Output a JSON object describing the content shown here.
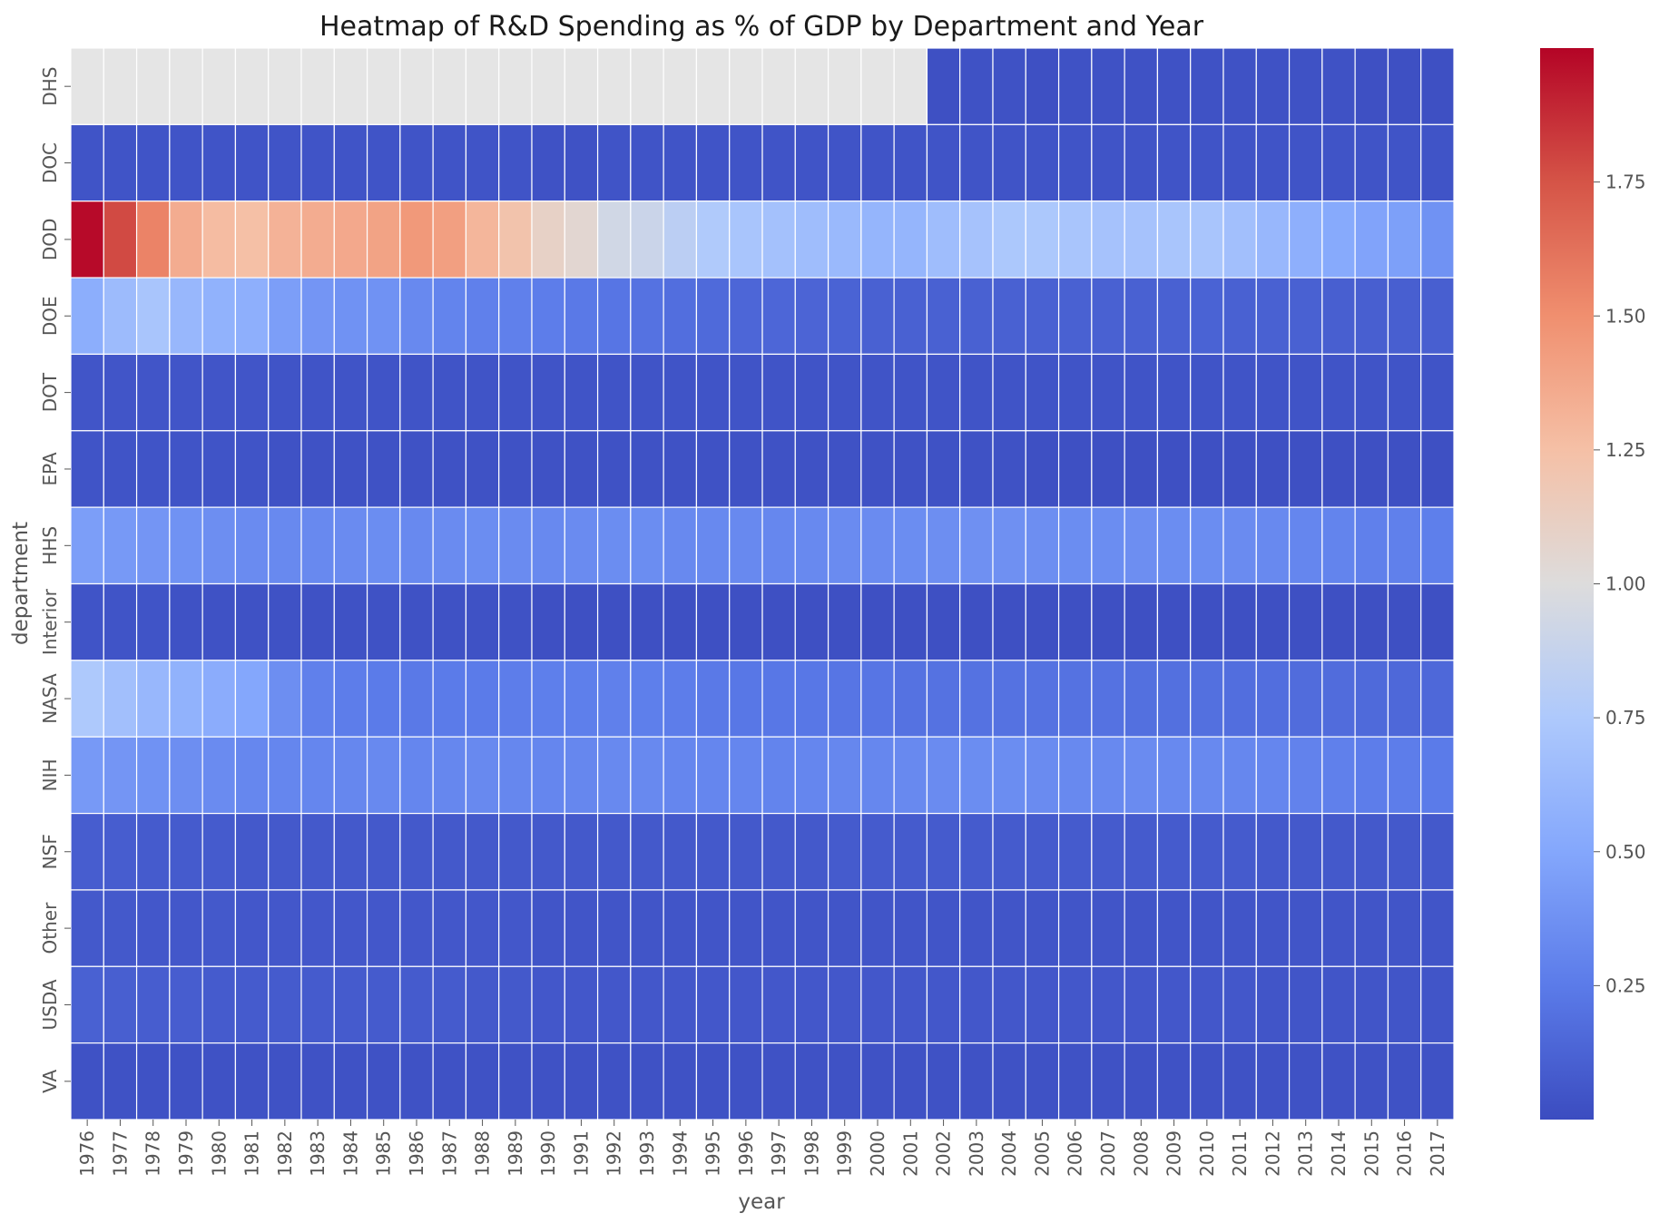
{
  "chart_data": {
    "type": "heatmap",
    "title": "Heatmap of R&D Spending as % of GDP by Department and Year",
    "xlabel": "year",
    "ylabel": "department",
    "colormap": "coolwarm",
    "missing_color": "#e5e5e5",
    "grid_line_color": "#ffffff",
    "vmin": 0.0,
    "vmax": 2.0,
    "colorbar_ticks": [
      "0.25",
      "0.50",
      "0.75",
      "1.00",
      "1.25",
      "1.50",
      "1.75"
    ],
    "x": [
      "1976",
      "1977",
      "1978",
      "1979",
      "1980",
      "1981",
      "1982",
      "1983",
      "1984",
      "1985",
      "1986",
      "1987",
      "1988",
      "1989",
      "1990",
      "1991",
      "1992",
      "1993",
      "1994",
      "1995",
      "1996",
      "1997",
      "1998",
      "1999",
      "2000",
      "2001",
      "2002",
      "2003",
      "2004",
      "2005",
      "2006",
      "2007",
      "2008",
      "2009",
      "2010",
      "2011",
      "2012",
      "2013",
      "2014",
      "2015",
      "2016",
      "2017"
    ],
    "y": [
      "DHS",
      "DOC",
      "DOD",
      "DOE",
      "DOT",
      "EPA",
      "HHS",
      "Interior",
      "NASA",
      "NIH",
      "NSF",
      "Other",
      "USDA",
      "VA"
    ],
    "values": [
      [
        null,
        null,
        null,
        null,
        null,
        null,
        null,
        null,
        null,
        null,
        null,
        null,
        null,
        null,
        null,
        null,
        null,
        null,
        null,
        null,
        null,
        null,
        null,
        null,
        null,
        null,
        0.02,
        0.03,
        0.03,
        0.02,
        0.03,
        0.03,
        0.03,
        0.03,
        0.03,
        0.03,
        0.03,
        0.03,
        0.03,
        0.02,
        0.02,
        0.02
      ],
      [
        0.04,
        0.04,
        0.04,
        0.04,
        0.04,
        0.04,
        0.04,
        0.04,
        0.04,
        0.04,
        0.04,
        0.04,
        0.04,
        0.04,
        0.03,
        0.03,
        0.04,
        0.04,
        0.04,
        0.04,
        0.04,
        0.04,
        0.04,
        0.04,
        0.04,
        0.04,
        0.04,
        0.04,
        0.04,
        0.04,
        0.04,
        0.04,
        0.04,
        0.04,
        0.04,
        0.04,
        0.04,
        0.04,
        0.04,
        0.04,
        0.04,
        0.04
      ],
      [
        1.98,
        1.78,
        1.55,
        1.35,
        1.27,
        1.25,
        1.32,
        1.35,
        1.37,
        1.4,
        1.45,
        1.42,
        1.3,
        1.22,
        1.1,
        1.05,
        0.93,
        0.9,
        0.82,
        0.76,
        0.72,
        0.69,
        0.66,
        0.63,
        0.6,
        0.6,
        0.66,
        0.7,
        0.74,
        0.74,
        0.72,
        0.7,
        0.7,
        0.72,
        0.72,
        0.68,
        0.62,
        0.56,
        0.52,
        0.48,
        0.46,
        0.38
      ],
      [
        0.55,
        0.65,
        0.72,
        0.62,
        0.58,
        0.56,
        0.45,
        0.4,
        0.38,
        0.38,
        0.33,
        0.3,
        0.28,
        0.28,
        0.26,
        0.24,
        0.22,
        0.2,
        0.18,
        0.16,
        0.14,
        0.14,
        0.13,
        0.12,
        0.11,
        0.11,
        0.11,
        0.11,
        0.11,
        0.11,
        0.11,
        0.11,
        0.11,
        0.11,
        0.12,
        0.11,
        0.11,
        0.11,
        0.1,
        0.1,
        0.1,
        0.1
      ],
      [
        0.05,
        0.05,
        0.05,
        0.05,
        0.05,
        0.05,
        0.04,
        0.04,
        0.04,
        0.04,
        0.04,
        0.04,
        0.04,
        0.04,
        0.04,
        0.04,
        0.04,
        0.04,
        0.04,
        0.04,
        0.04,
        0.04,
        0.04,
        0.04,
        0.04,
        0.04,
        0.04,
        0.04,
        0.04,
        0.04,
        0.04,
        0.04,
        0.04,
        0.04,
        0.04,
        0.04,
        0.04,
        0.04,
        0.04,
        0.04,
        0.04,
        0.04
      ],
      [
        0.04,
        0.04,
        0.04,
        0.04,
        0.04,
        0.04,
        0.03,
        0.03,
        0.03,
        0.03,
        0.03,
        0.03,
        0.03,
        0.03,
        0.03,
        0.03,
        0.03,
        0.03,
        0.03,
        0.03,
        0.03,
        0.03,
        0.03,
        0.03,
        0.03,
        0.03,
        0.03,
        0.03,
        0.03,
        0.02,
        0.02,
        0.02,
        0.02,
        0.02,
        0.02,
        0.02,
        0.02,
        0.02,
        0.02,
        0.02,
        0.02,
        0.02
      ],
      [
        0.45,
        0.42,
        0.4,
        0.38,
        0.36,
        0.34,
        0.33,
        0.33,
        0.34,
        0.35,
        0.33,
        0.34,
        0.35,
        0.34,
        0.33,
        0.34,
        0.35,
        0.35,
        0.33,
        0.33,
        0.33,
        0.32,
        0.33,
        0.34,
        0.34,
        0.35,
        0.36,
        0.37,
        0.37,
        0.36,
        0.35,
        0.35,
        0.36,
        0.35,
        0.35,
        0.34,
        0.33,
        0.31,
        0.3,
        0.28,
        0.28,
        0.27
      ],
      [
        0.04,
        0.04,
        0.04,
        0.03,
        0.03,
        0.03,
        0.03,
        0.03,
        0.03,
        0.03,
        0.03,
        0.03,
        0.03,
        0.03,
        0.02,
        0.02,
        0.02,
        0.02,
        0.02,
        0.02,
        0.02,
        0.02,
        0.02,
        0.02,
        0.02,
        0.02,
        0.02,
        0.02,
        0.02,
        0.02,
        0.02,
        0.02,
        0.02,
        0.02,
        0.02,
        0.02,
        0.02,
        0.02,
        0.02,
        0.02,
        0.02,
        0.02
      ],
      [
        0.75,
        0.68,
        0.62,
        0.58,
        0.54,
        0.5,
        0.36,
        0.28,
        0.26,
        0.25,
        0.24,
        0.25,
        0.25,
        0.26,
        0.27,
        0.27,
        0.28,
        0.27,
        0.26,
        0.24,
        0.23,
        0.23,
        0.23,
        0.22,
        0.22,
        0.2,
        0.2,
        0.2,
        0.2,
        0.2,
        0.2,
        0.2,
        0.19,
        0.19,
        0.19,
        0.18,
        0.18,
        0.17,
        0.17,
        0.16,
        0.15,
        0.15
      ],
      [
        0.42,
        0.4,
        0.38,
        0.36,
        0.34,
        0.32,
        0.31,
        0.31,
        0.32,
        0.33,
        0.31,
        0.32,
        0.33,
        0.32,
        0.31,
        0.32,
        0.33,
        0.33,
        0.31,
        0.31,
        0.31,
        0.3,
        0.31,
        0.32,
        0.32,
        0.33,
        0.34,
        0.35,
        0.35,
        0.34,
        0.33,
        0.33,
        0.34,
        0.33,
        0.33,
        0.32,
        0.31,
        0.29,
        0.28,
        0.26,
        0.26,
        0.25
      ],
      [
        0.09,
        0.09,
        0.08,
        0.08,
        0.08,
        0.07,
        0.07,
        0.07,
        0.07,
        0.07,
        0.07,
        0.07,
        0.07,
        0.07,
        0.07,
        0.07,
        0.07,
        0.07,
        0.07,
        0.07,
        0.07,
        0.07,
        0.07,
        0.08,
        0.08,
        0.08,
        0.08,
        0.08,
        0.08,
        0.08,
        0.08,
        0.08,
        0.08,
        0.08,
        0.08,
        0.08,
        0.07,
        0.07,
        0.07,
        0.07,
        0.07,
        0.07
      ],
      [
        0.07,
        0.07,
        0.06,
        0.06,
        0.07,
        0.06,
        0.06,
        0.06,
        0.06,
        0.06,
        0.06,
        0.06,
        0.06,
        0.06,
        0.05,
        0.05,
        0.05,
        0.05,
        0.05,
        0.05,
        0.05,
        0.05,
        0.05,
        0.05,
        0.05,
        0.05,
        0.05,
        0.05,
        0.05,
        0.05,
        0.05,
        0.05,
        0.05,
        0.05,
        0.05,
        0.05,
        0.05,
        0.05,
        0.05,
        0.05,
        0.05,
        0.05
      ],
      [
        0.11,
        0.1,
        0.09,
        0.09,
        0.08,
        0.08,
        0.08,
        0.08,
        0.08,
        0.08,
        0.08,
        0.08,
        0.07,
        0.07,
        0.06,
        0.06,
        0.06,
        0.06,
        0.06,
        0.06,
        0.06,
        0.06,
        0.06,
        0.06,
        0.06,
        0.06,
        0.06,
        0.06,
        0.06,
        0.06,
        0.06,
        0.06,
        0.06,
        0.06,
        0.06,
        0.06,
        0.05,
        0.05,
        0.05,
        0.05,
        0.05,
        0.05
      ],
      [
        0.03,
        0.03,
        0.03,
        0.03,
        0.03,
        0.03,
        0.03,
        0.03,
        0.03,
        0.03,
        0.03,
        0.03,
        0.03,
        0.03,
        0.03,
        0.03,
        0.03,
        0.03,
        0.03,
        0.03,
        0.03,
        0.03,
        0.03,
        0.03,
        0.03,
        0.03,
        0.03,
        0.03,
        0.03,
        0.03,
        0.03,
        0.03,
        0.03,
        0.03,
        0.03,
        0.03,
        0.03,
        0.03,
        0.03,
        0.03,
        0.03,
        0.03
      ]
    ]
  }
}
